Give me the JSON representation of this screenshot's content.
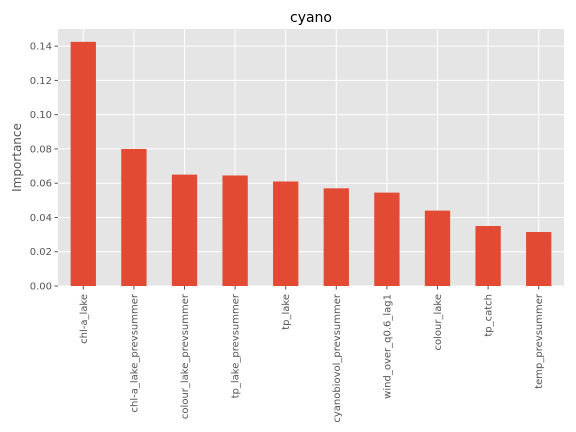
{
  "chart_data": {
    "type": "bar",
    "title": "cyano",
    "xlabel": "",
    "ylabel": "Importance",
    "categories": [
      "chl-a_lake",
      "chl-a_lake_prevsummer",
      "colour_lake_prevsummer",
      "tp_lake_prevsummer",
      "tp_lake",
      "cyanobiovol_prevsummer",
      "wind_over_q0.6_lag1",
      "colour_lake",
      "tp_catch",
      "temp_prevsummer"
    ],
    "values": [
      0.1425,
      0.08,
      0.065,
      0.0645,
      0.061,
      0.057,
      0.0545,
      0.044,
      0.035,
      0.0315
    ],
    "yticks": [
      "0.00",
      "0.02",
      "0.04",
      "0.06",
      "0.08",
      "0.10",
      "0.12",
      "0.14"
    ],
    "ylim": [
      0,
      0.15
    ],
    "grid": true,
    "colors": {
      "bar": "#E24A33",
      "background": "#E5E5E5",
      "grid": "#FFFFFF"
    }
  }
}
